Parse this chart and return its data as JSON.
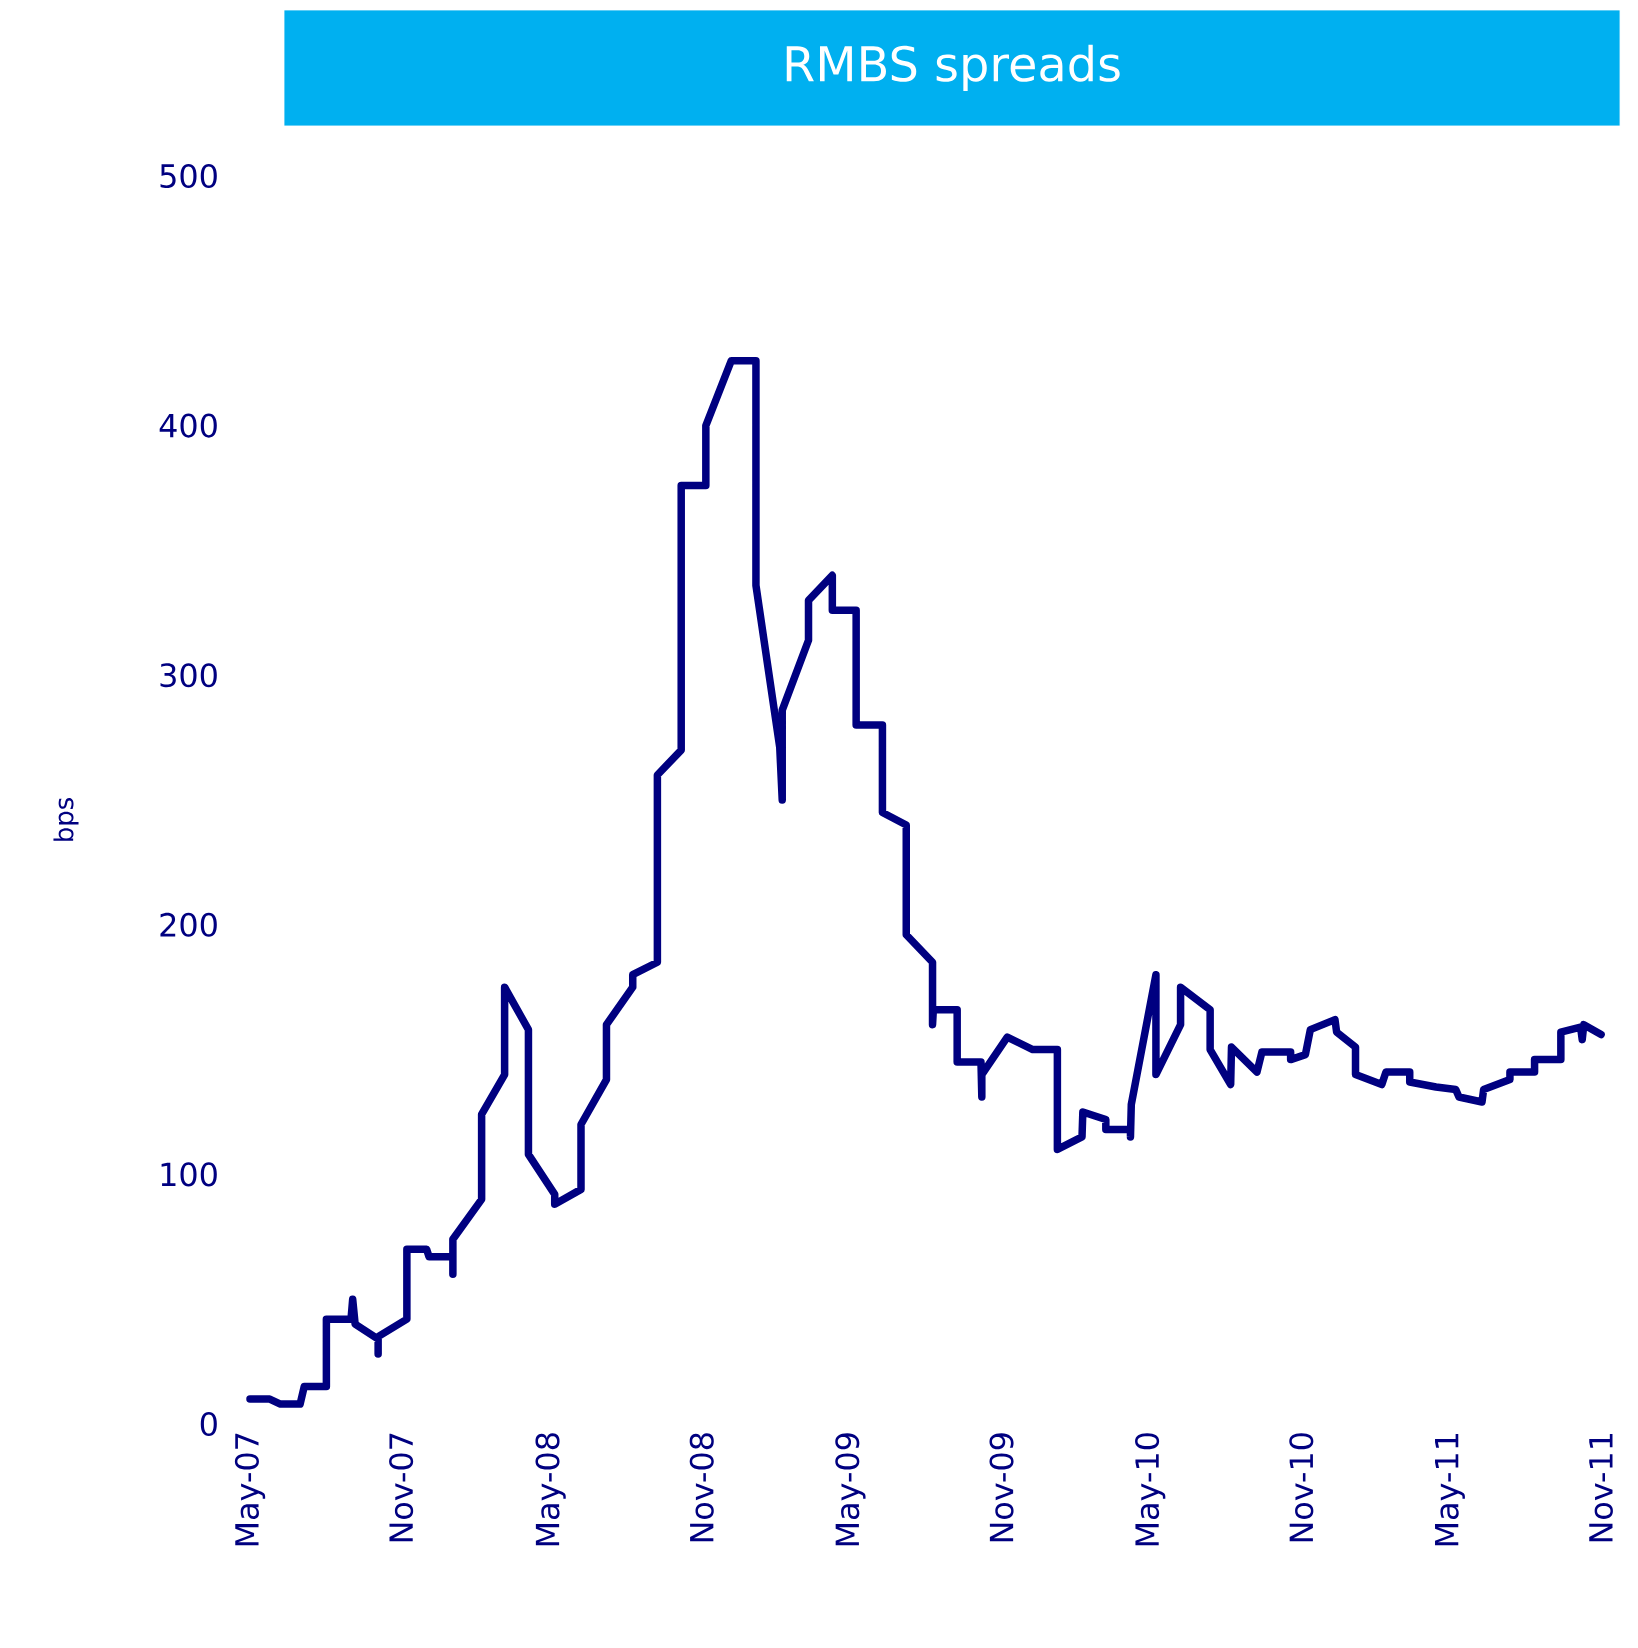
{
  "chart_data": {
    "type": "line",
    "title": "RMBS spreads",
    "ylabel": "bps",
    "xlim": [
      "2007-05-01",
      "2011-11-01"
    ],
    "ylim": [
      0,
      500
    ],
    "yticks": [
      0,
      100,
      200,
      300,
      400,
      500
    ],
    "xticks": [
      {
        "value": "2007-05",
        "label": "May-07"
      },
      {
        "value": "2007-11",
        "label": "Nov-07"
      },
      {
        "value": "2008-05",
        "label": "May-08"
      },
      {
        "value": "2008-11",
        "label": "Nov-08"
      },
      {
        "value": "2009-05",
        "label": "May-09"
      },
      {
        "value": "2009-11",
        "label": "Nov-09"
      },
      {
        "value": "2010-05",
        "label": "May-10"
      },
      {
        "value": "2010-11",
        "label": "Nov-10"
      },
      {
        "value": "2011-05",
        "label": "May-11"
      },
      {
        "value": "2011-11",
        "label": "Nov-11"
      }
    ],
    "grid": false,
    "series": [
      {
        "color": "#000080",
        "x": [
          "2007-05-01",
          "2007-05-25",
          "2007-06-07",
          "2007-07-01",
          "2007-07-06",
          "2007-08-02",
          "2007-08-02",
          "2007-09-01",
          "2007-09-03",
          "2007-09-06",
          "2007-10-04",
          "2007-10-04",
          "2007-10-04",
          "2007-11-08",
          "2007-11-08",
          "2007-12-02",
          "2007-12-05",
          "2008-01-03",
          "2008-01-03",
          "2008-01-03",
          "2008-02-07",
          "2008-02-07",
          "2008-03-06",
          "2008-03-06",
          "2008-04-04",
          "2008-04-04",
          "2008-05-06",
          "2008-05-06",
          "2008-06-07",
          "2008-06-07",
          "2008-07-08",
          "2008-07-08",
          "2008-08-09",
          "2008-08-09",
          "2008-09-08",
          "2008-09-08",
          "2008-10-07",
          "2008-10-07",
          "2008-11-06",
          "2008-11-06",
          "2008-12-07",
          "2009-01-06",
          "2009-01-06",
          "2009-02-04",
          "2009-02-07",
          "2009-02-07",
          "2009-03-11",
          "2009-03-11",
          "2009-04-09",
          "2009-04-09",
          "2009-05-08",
          "2009-05-08",
          "2009-06-09",
          "2009-06-09",
          "2009-07-08",
          "2009-07-08",
          "2009-08-09",
          "2009-08-09",
          "2009-08-10",
          "2009-09-08",
          "2009-09-08",
          "2009-10-07",
          "2009-10-08",
          "2009-10-08",
          "2009-11-08",
          "2009-12-09",
          "2010-01-08",
          "2010-01-08",
          "2010-02-07",
          "2010-02-08",
          "2010-03-08",
          "2010-03-08",
          "2010-04-07",
          "2010-04-07",
          "2010-04-08",
          "2010-05-08",
          "2010-05-08",
          "2010-06-07",
          "2010-06-07",
          "2010-07-13",
          "2010-07-13",
          "2010-08-07",
          "2010-08-08",
          "2010-09-08",
          "2010-09-14",
          "2010-10-19",
          "2010-10-19",
          "2010-11-06",
          "2010-11-12",
          "2010-12-12",
          "2010-12-14",
          "2011-01-06",
          "2011-01-06",
          "2011-02-07",
          "2011-02-12",
          "2011-03-13",
          "2011-03-13",
          "2011-04-14",
          "2011-05-08",
          "2011-05-12",
          "2011-06-09",
          "2011-06-11",
          "2011-07-13",
          "2011-07-13",
          "2011-08-12",
          "2011-08-12",
          "2011-09-13",
          "2011-09-13",
          "2011-10-07",
          "2011-10-09",
          "2011-10-11",
          "2011-11-01"
        ],
        "values": [
          10,
          10,
          8,
          8,
          15,
          15,
          42,
          42,
          50,
          40,
          34,
          28,
          35,
          42,
          70,
          70,
          67,
          67,
          60,
          74,
          90,
          124,
          140,
          175,
          158,
          108,
          92,
          88,
          94,
          120,
          138,
          160,
          175,
          180,
          185,
          260,
          270,
          376,
          376,
          400,
          426,
          426,
          336,
          271,
          250,
          286,
          314,
          330,
          340,
          326,
          326,
          280,
          280,
          245,
          240,
          196,
          185,
          160,
          166,
          166,
          145,
          145,
          131,
          140,
          155,
          150,
          150,
          110,
          115,
          125,
          122,
          118,
          118,
          115,
          128,
          180,
          140,
          160,
          175,
          166,
          150,
          136,
          151,
          141,
          149,
          149,
          146,
          148,
          158,
          162,
          157,
          151,
          140,
          136,
          141,
          141,
          137,
          135,
          134,
          131,
          129,
          134,
          138,
          141,
          141,
          146,
          146,
          157,
          159,
          154,
          160,
          156
        ]
      }
    ]
  }
}
